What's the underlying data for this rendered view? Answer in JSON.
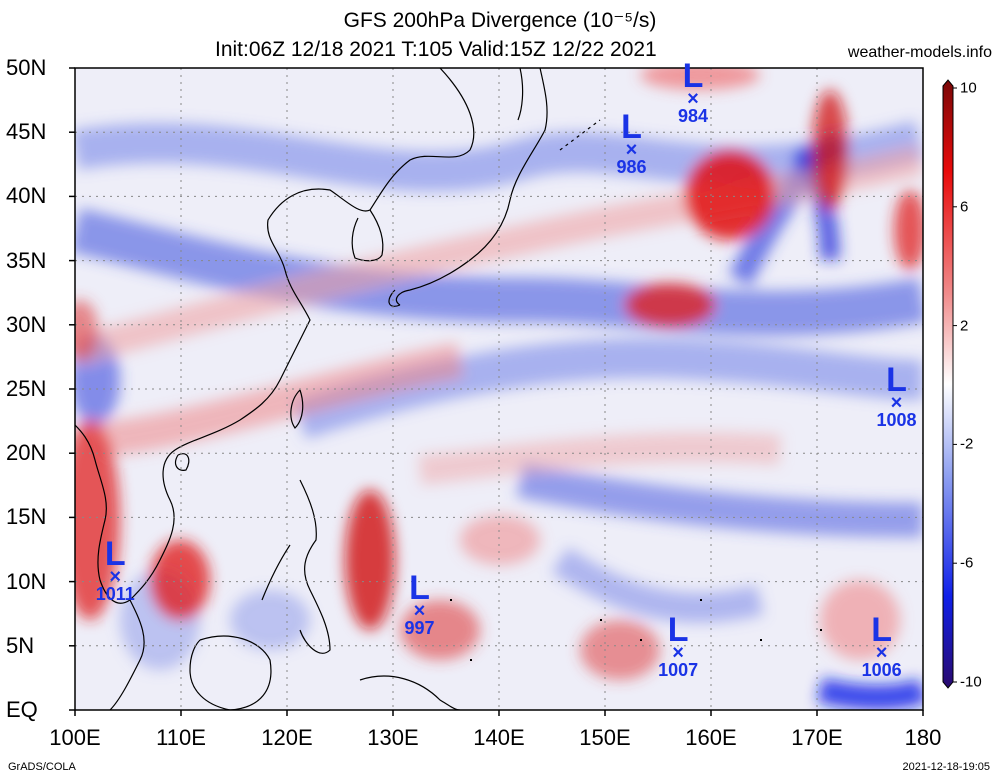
{
  "title_line1": "GFS 200hPa Divergence (10⁻⁵/s)",
  "title_line2": "Init:06Z 12/18 2021 T:105 Valid:15Z 12/22 2021",
  "site": "weather-models.info",
  "lat_labels": [
    "50N",
    "45N",
    "40N",
    "35N",
    "30N",
    "25N",
    "20N",
    "15N",
    "10N",
    "5N",
    "EQ"
  ],
  "lon_labels": [
    "100E",
    "110E",
    "120E",
    "130E",
    "140E",
    "150E",
    "160E",
    "170E",
    "180"
  ],
  "colorbar_labels": [
    "10",
    "6",
    "2",
    "-2",
    "-6",
    "-10"
  ],
  "footer_left": "GrADS/COLA",
  "footer_right": "2021-12-18-19:05",
  "lows": [
    {
      "letter": "L",
      "mark": "×",
      "pressure": "984",
      "lon": 158.3,
      "lat": 47.7
    },
    {
      "letter": "L",
      "mark": "×",
      "pressure": "986",
      "lon": 152.5,
      "lat": 43.7
    },
    {
      "letter": "L",
      "mark": "×",
      "pressure": "1008",
      "lon": 177.5,
      "lat": 24.0
    },
    {
      "letter": "L",
      "mark": "×",
      "pressure": "1011",
      "lon": 103.8,
      "lat": 10.4
    },
    {
      "letter": "L",
      "mark": "×",
      "pressure": "997",
      "lon": 132.5,
      "lat": 7.8
    },
    {
      "letter": "L",
      "mark": "×",
      "pressure": "1007",
      "lon": 156.9,
      "lat": 4.5
    },
    {
      "letter": "L",
      "mark": "×",
      "pressure": "1006",
      "lon": 176.1,
      "lat": 4.5
    }
  ],
  "colors": {
    "positive": "#e60000",
    "negative": "#1a33e6",
    "low_marker": "#1a33e6"
  }
}
